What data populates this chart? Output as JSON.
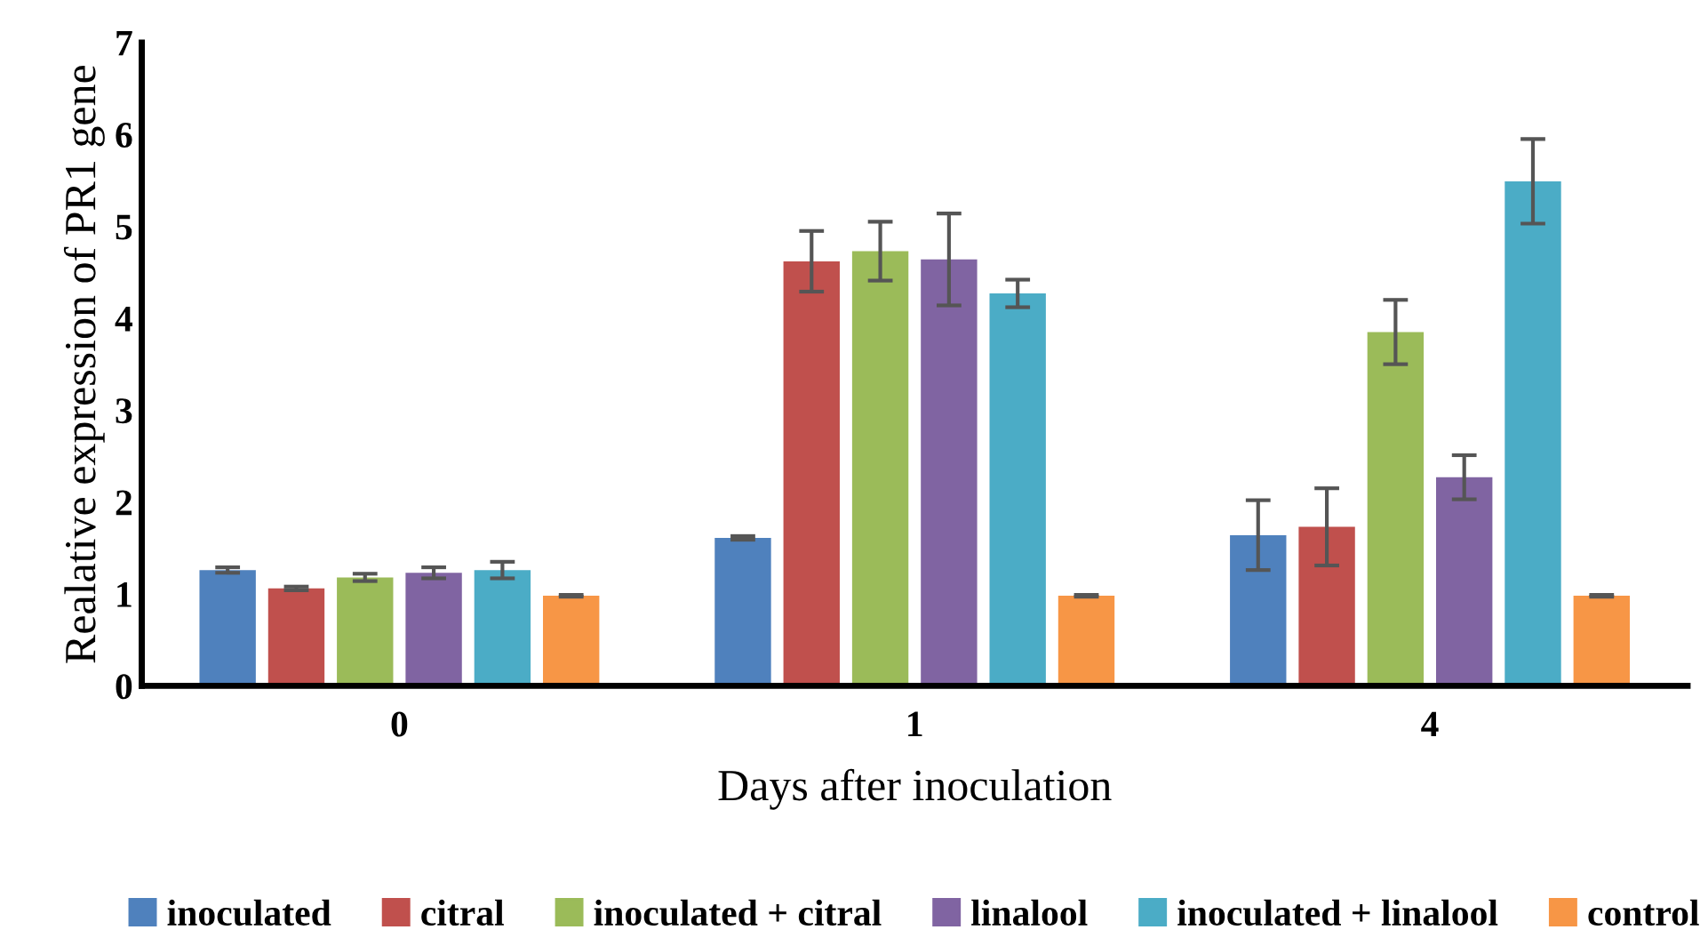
{
  "chart_data": {
    "type": "bar",
    "xlabel": "Days after inoculation",
    "ylabel": "Realative expression of PR1 gene",
    "categories": [
      "0",
      "1",
      "4"
    ],
    "ylim": [
      0,
      7
    ],
    "yticks": [
      0,
      1,
      2,
      3,
      4,
      5,
      6,
      7
    ],
    "grid": false,
    "legend": "bottom",
    "series": [
      {
        "name": "inoculated",
        "color": "#4f81bd",
        "values": [
          1.26,
          1.61,
          1.64
        ],
        "errors": [
          0.03,
          0.02,
          0.38
        ]
      },
      {
        "name": "citral",
        "color": "#c0504d",
        "values": [
          1.06,
          4.62,
          1.73
        ],
        "errors": [
          0.02,
          0.33,
          0.42
        ]
      },
      {
        "name": "inoculated + citral",
        "color": "#9bbb59",
        "values": [
          1.18,
          4.73,
          3.85
        ],
        "errors": [
          0.04,
          0.32,
          0.35
        ]
      },
      {
        "name": "linalool",
        "color": "#8064a2",
        "values": [
          1.23,
          4.64,
          2.27
        ],
        "errors": [
          0.06,
          0.5,
          0.24
        ]
      },
      {
        "name": "inoculated + linalool",
        "color": "#4bacc6",
        "values": [
          1.26,
          4.27,
          5.49
        ],
        "errors": [
          0.09,
          0.15,
          0.46
        ]
      },
      {
        "name": "control",
        "color": "#f79646",
        "values": [
          0.98,
          0.98,
          0.98
        ],
        "errors": [
          0.01,
          0.01,
          0.01
        ]
      }
    ]
  }
}
